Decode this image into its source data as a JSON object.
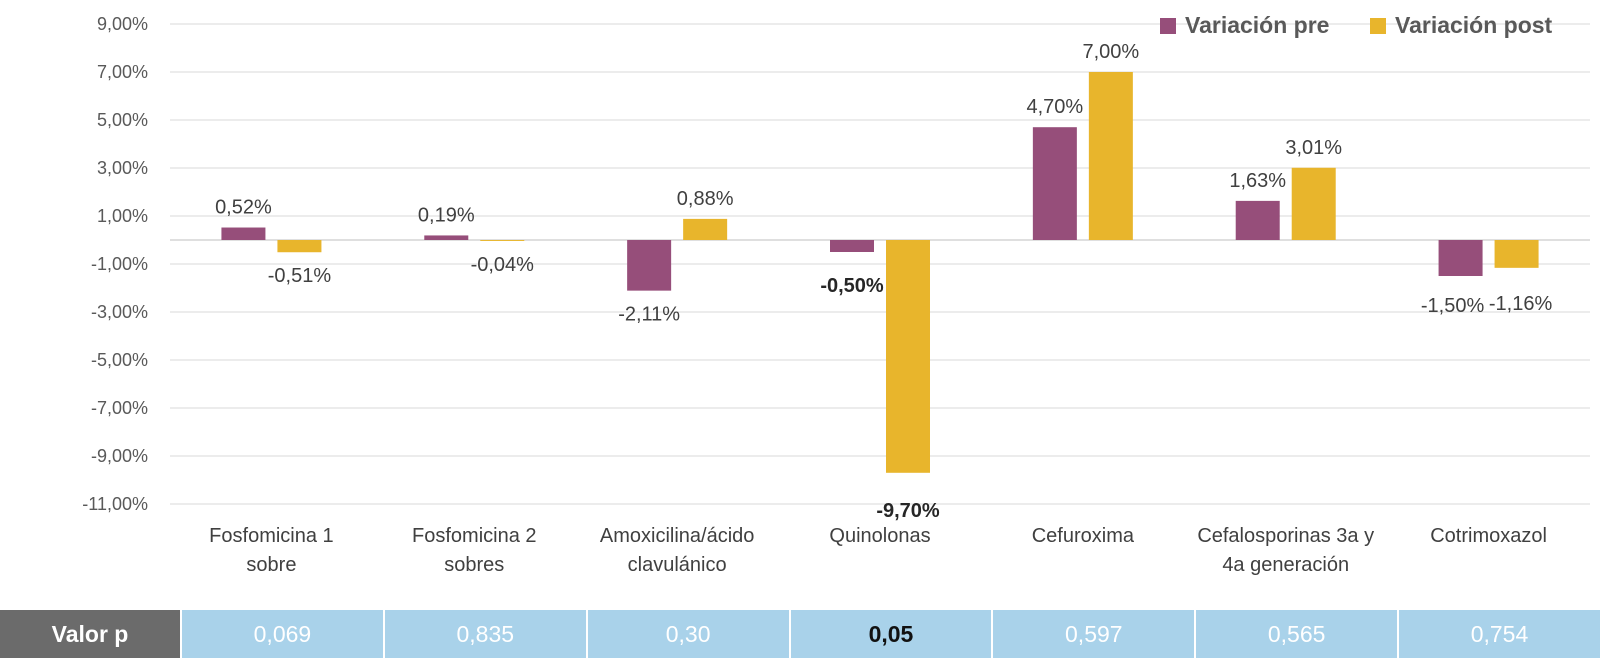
{
  "colors": {
    "pre": "#964e7a",
    "post": "#e8b52c",
    "grid": "#d9d9d9"
  },
  "chart_data": {
    "type": "bar",
    "categories": [
      [
        "Fosfomicina 1",
        "sobre"
      ],
      [
        "Fosfomicina 2",
        "sobres"
      ],
      [
        "Amoxicilina/ácido",
        "clavulánico"
      ],
      [
        "Quinolonas"
      ],
      [
        "Cefuroxima"
      ],
      [
        "Cefalosporinas 3a y",
        "4a generación"
      ],
      [
        "Cotrimoxazol"
      ]
    ],
    "series": [
      {
        "name": "Variación pre",
        "values": [
          0.52,
          0.19,
          -2.11,
          -0.5,
          4.7,
          1.63,
          -1.5
        ],
        "labels": [
          "0,52%",
          "0,19%",
          "-2,11%",
          "-0,50%",
          "4,70%",
          "1,63%",
          "-1,50%"
        ]
      },
      {
        "name": "Variación post",
        "values": [
          -0.51,
          -0.04,
          0.88,
          -9.7,
          7.0,
          3.01,
          -1.16
        ],
        "labels": [
          "-0,51%",
          "-0,04%",
          "0,88%",
          "-9,70%",
          "7,00%",
          "3,01%",
          "-1,16%"
        ]
      }
    ],
    "bold_labels": [
      "-0,50%",
      "-9,70%"
    ],
    "ylim": [
      -11,
      9
    ],
    "yticks": [
      "9,00%",
      "7,00%",
      "5,00%",
      "3,00%",
      "1,00%",
      "-1,00%",
      "-3,00%",
      "-5,00%",
      "-7,00%",
      "-9,00%",
      "-11,00%"
    ],
    "ytick_values": [
      9,
      7,
      5,
      3,
      1,
      -1,
      -3,
      -5,
      -7,
      -9,
      -11
    ],
    "grid": true,
    "legend_position": "top-right"
  },
  "p_table": {
    "header": "Valor p",
    "values": [
      "0,069",
      "0,835",
      "0,30",
      "0,05",
      "0,597",
      "0,565",
      "0,754"
    ],
    "bold": [
      "0,05"
    ]
  }
}
